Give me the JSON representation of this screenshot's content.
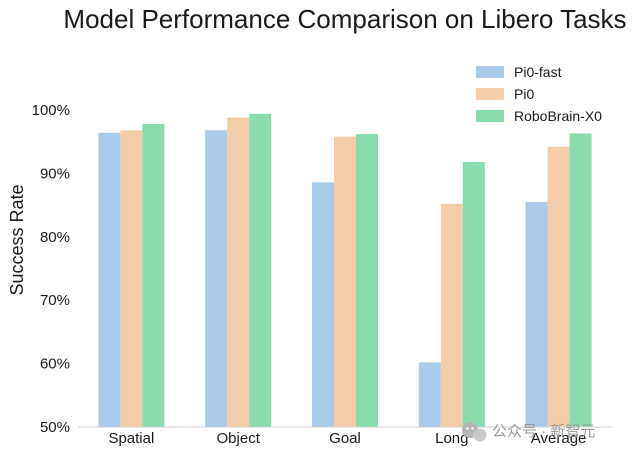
{
  "chart_data": {
    "type": "bar",
    "title": "Model Performance Comparison on Libero Tasks",
    "xlabel": "",
    "ylabel": "Success Rate",
    "categories": [
      "Spatial",
      "Object",
      "Goal",
      "Long",
      "Average"
    ],
    "series": [
      {
        "name": "Pi0-fast",
        "color": "#a9cae8",
        "values": [
          96.4,
          96.8,
          88.6,
          60.2,
          85.5
        ]
      },
      {
        "name": "Pi0",
        "color": "#f5cca8",
        "values": [
          96.8,
          98.8,
          95.8,
          85.2,
          94.2
        ]
      },
      {
        "name": "RoboBrain-X0",
        "color": "#88dcae",
        "values": [
          97.8,
          99.4,
          96.2,
          91.8,
          96.3
        ]
      }
    ],
    "ylim": [
      50,
      100
    ],
    "yticks": [
      50,
      60,
      70,
      80,
      90,
      100
    ],
    "ytick_labels": [
      "50%",
      "60%",
      "70%",
      "80%",
      "90%",
      "100%"
    ],
    "grid": false,
    "legend_position": "top-right"
  },
  "watermark": {
    "icon": "wechat-icon",
    "text": "公众号 · 新智元"
  }
}
